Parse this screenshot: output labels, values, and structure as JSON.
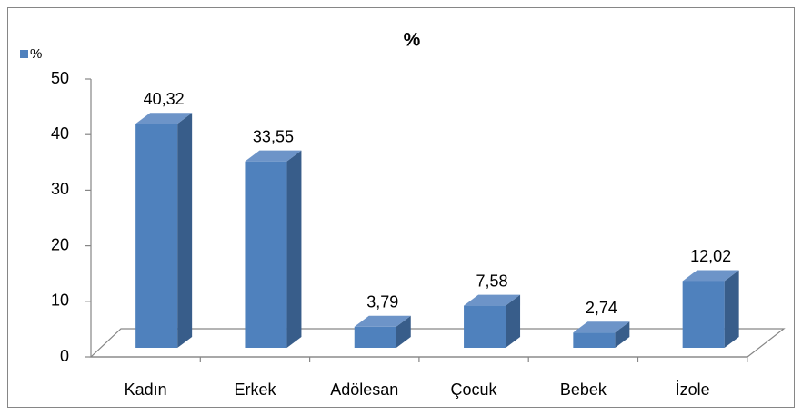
{
  "chart_data": {
    "type": "bar3d",
    "title": "%",
    "categories": [
      "Kadın",
      "Erkek",
      "Adölesan",
      "Çocuk",
      "Bebek",
      "İzole"
    ],
    "series": [
      {
        "name": "%",
        "color": "#4f81bd",
        "values": [
          40.32,
          33.55,
          3.79,
          7.58,
          2.74,
          12.02
        ],
        "value_labels": [
          "40,32",
          "33,55",
          "3,79",
          "7,58",
          "2,74",
          "12,02"
        ]
      }
    ],
    "ylim": [
      0,
      50
    ],
    "yticks": [
      0,
      10,
      20,
      30,
      40,
      50
    ],
    "legend": "top-left"
  }
}
